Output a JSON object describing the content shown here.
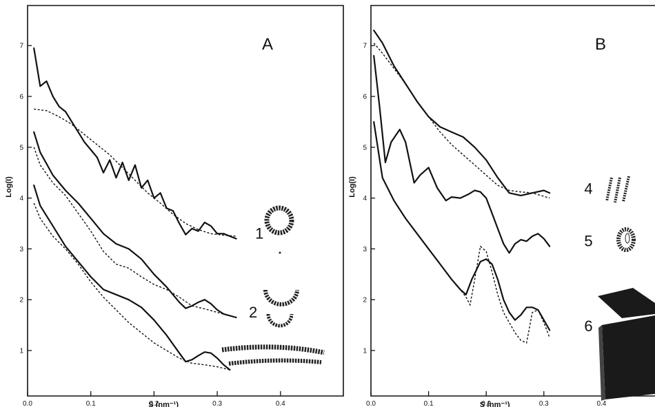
{
  "chart_data": [
    {
      "type": "line",
      "panel": "A",
      "xlabel": "S (nm⁻¹)",
      "ylabel": "Log(I)",
      "xlim": [
        0,
        0.5
      ],
      "ylim": [
        0.5,
        7.3
      ],
      "xticks": [
        {
          "v": 0.0,
          "label": "0.0"
        },
        {
          "v": 0.1,
          "label": "0.1"
        },
        {
          "v": 0.2,
          "label": "0.2"
        },
        {
          "v": 0.3,
          "label": "0.3"
        },
        {
          "v": 0.4,
          "label": "0.4"
        }
      ],
      "yticks": [
        {
          "v": 1,
          "label": "1"
        },
        {
          "v": 2,
          "label": "2"
        },
        {
          "v": 3,
          "label": "3"
        },
        {
          "v": 4,
          "label": "4"
        },
        {
          "v": 5,
          "label": "5"
        },
        {
          "v": 6,
          "label": "6"
        },
        {
          "v": 7,
          "label": "7"
        }
      ],
      "grid": false,
      "series": [
        {
          "style": "solid",
          "x": [
            0.01,
            0.02,
            0.03,
            0.04,
            0.05,
            0.06,
            0.07,
            0.08,
            0.09,
            0.1,
            0.11,
            0.12,
            0.13,
            0.14,
            0.15,
            0.16,
            0.17,
            0.18,
            0.19,
            0.2,
            0.21,
            0.22,
            0.23,
            0.24,
            0.25,
            0.26,
            0.27,
            0.28,
            0.29,
            0.3,
            0.31,
            0.32,
            0.33
          ],
          "y": [
            6.95,
            6.2,
            6.3,
            6.0,
            5.8,
            5.7,
            5.5,
            5.3,
            5.1,
            4.95,
            4.8,
            4.5,
            4.75,
            4.4,
            4.7,
            4.35,
            4.65,
            4.2,
            4.35,
            4.0,
            4.1,
            3.8,
            3.75,
            3.5,
            3.28,
            3.4,
            3.35,
            3.52,
            3.45,
            3.3,
            3.3,
            3.25,
            3.2
          ]
        },
        {
          "style": "dashed",
          "x": [
            0.01,
            0.03,
            0.05,
            0.07,
            0.09,
            0.11,
            0.13,
            0.15,
            0.17,
            0.19,
            0.21,
            0.23,
            0.25,
            0.27,
            0.29,
            0.31,
            0.33
          ],
          "y": [
            5.75,
            5.72,
            5.6,
            5.45,
            5.25,
            5.05,
            4.85,
            4.6,
            4.35,
            4.1,
            3.9,
            3.68,
            3.5,
            3.38,
            3.3,
            3.27,
            3.25
          ]
        },
        {
          "style": "solid",
          "x": [
            0.01,
            0.02,
            0.04,
            0.06,
            0.08,
            0.1,
            0.12,
            0.14,
            0.16,
            0.18,
            0.2,
            0.22,
            0.24,
            0.25,
            0.26,
            0.27,
            0.28,
            0.29,
            0.3,
            0.31,
            0.33
          ],
          "y": [
            5.3,
            4.9,
            4.45,
            4.15,
            3.9,
            3.6,
            3.3,
            3.1,
            3.0,
            2.8,
            2.5,
            2.25,
            1.95,
            1.83,
            1.88,
            1.95,
            2.0,
            1.92,
            1.8,
            1.72,
            1.65
          ]
        },
        {
          "style": "dashed",
          "x": [
            0.01,
            0.02,
            0.04,
            0.06,
            0.08,
            0.1,
            0.12,
            0.14,
            0.16,
            0.18,
            0.2,
            0.22,
            0.24,
            0.26,
            0.28,
            0.3,
            0.33
          ],
          "y": [
            5.0,
            4.65,
            4.3,
            4.05,
            3.7,
            3.35,
            2.95,
            2.7,
            2.62,
            2.45,
            2.3,
            2.2,
            2.05,
            1.88,
            1.82,
            1.75,
            1.65
          ]
        },
        {
          "style": "solid",
          "x": [
            0.01,
            0.02,
            0.04,
            0.06,
            0.08,
            0.1,
            0.12,
            0.14,
            0.16,
            0.18,
            0.2,
            0.22,
            0.24,
            0.25,
            0.26,
            0.27,
            0.28,
            0.29,
            0.3,
            0.31,
            0.32
          ],
          "y": [
            4.25,
            3.85,
            3.45,
            3.05,
            2.75,
            2.45,
            2.2,
            2.1,
            2.0,
            1.85,
            1.6,
            1.3,
            0.95,
            0.78,
            0.82,
            0.9,
            0.97,
            0.95,
            0.85,
            0.72,
            0.62
          ]
        },
        {
          "style": "dashed",
          "x": [
            0.01,
            0.02,
            0.04,
            0.06,
            0.08,
            0.1,
            0.12,
            0.14,
            0.16,
            0.18,
            0.2,
            0.22,
            0.24,
            0.26,
            0.28,
            0.3,
            0.32
          ],
          "y": [
            3.9,
            3.6,
            3.25,
            3.0,
            2.7,
            2.35,
            2.05,
            1.8,
            1.55,
            1.35,
            1.15,
            1.0,
            0.85,
            0.75,
            0.72,
            0.68,
            0.62
          ]
        }
      ],
      "curve_labels": [
        {
          "text": "1",
          "x": 0.36,
          "y": 3.2
        },
        {
          "text": "2",
          "x": 0.35,
          "y": 1.65
        }
      ]
    },
    {
      "type": "line",
      "panel": "B",
      "xlabel": "S (nm⁻¹)",
      "ylabel": "Log(I)",
      "xlim": [
        0,
        0.5
      ],
      "ylim": [
        0.5,
        7.3
      ],
      "xticks": [
        {
          "v": 0.0,
          "label": "0.0"
        },
        {
          "v": 0.1,
          "label": "0.1"
        },
        {
          "v": 0.2,
          "label": "0.2"
        },
        {
          "v": 0.3,
          "label": "0.3"
        },
        {
          "v": 0.4,
          "label": "0.4"
        }
      ],
      "yticks": [
        {
          "v": 1,
          "label": "1"
        },
        {
          "v": 2,
          "label": "2"
        },
        {
          "v": 3,
          "label": "3"
        },
        {
          "v": 4,
          "label": "4"
        },
        {
          "v": 5,
          "label": "5"
        },
        {
          "v": 6,
          "label": "6"
        },
        {
          "v": 7,
          "label": "7"
        }
      ],
      "grid": false,
      "series": [
        {
          "style": "solid",
          "x": [
            0.005,
            0.02,
            0.04,
            0.06,
            0.08,
            0.1,
            0.12,
            0.14,
            0.16,
            0.18,
            0.2,
            0.22,
            0.24,
            0.26,
            0.28,
            0.3,
            0.31
          ],
          "y": [
            7.3,
            7.05,
            6.6,
            6.25,
            5.9,
            5.6,
            5.4,
            5.3,
            5.2,
            5.0,
            4.75,
            4.4,
            4.1,
            4.05,
            4.1,
            4.15,
            4.1
          ]
        },
        {
          "style": "dashed",
          "x": [
            0.005,
            0.02,
            0.04,
            0.06,
            0.08,
            0.1,
            0.12,
            0.14,
            0.16,
            0.18,
            0.2,
            0.22,
            0.24,
            0.26,
            0.28,
            0.31
          ],
          "y": [
            7.05,
            6.85,
            6.55,
            6.25,
            5.9,
            5.6,
            5.3,
            5.05,
            4.85,
            4.65,
            4.45,
            4.25,
            4.15,
            4.12,
            4.1,
            4.0
          ]
        },
        {
          "style": "solid",
          "x": [
            0.005,
            0.015,
            0.025,
            0.035,
            0.05,
            0.06,
            0.075,
            0.085,
            0.1,
            0.115,
            0.13,
            0.14,
            0.155,
            0.17,
            0.18,
            0.19,
            0.2,
            0.21,
            0.22,
            0.23,
            0.24,
            0.25,
            0.26,
            0.27,
            0.28,
            0.29,
            0.3,
            0.31
          ],
          "y": [
            6.8,
            5.8,
            4.7,
            5.1,
            5.35,
            5.1,
            4.3,
            4.45,
            4.6,
            4.2,
            3.95,
            4.02,
            4.0,
            4.08,
            4.15,
            4.12,
            4.0,
            3.7,
            3.4,
            3.1,
            2.92,
            3.1,
            3.18,
            3.15,
            3.25,
            3.3,
            3.2,
            3.05
          ]
        },
        {
          "style": "solid",
          "x": [
            0.005,
            0.02,
            0.04,
            0.06,
            0.08,
            0.1,
            0.12,
            0.14,
            0.155,
            0.165,
            0.175,
            0.19,
            0.2,
            0.21,
            0.22,
            0.23,
            0.24,
            0.25,
            0.26,
            0.27,
            0.28,
            0.29,
            0.3,
            0.31
          ],
          "y": [
            5.5,
            4.4,
            3.95,
            3.6,
            3.3,
            3.0,
            2.7,
            2.4,
            2.2,
            2.1,
            2.4,
            2.75,
            2.8,
            2.7,
            2.4,
            2.0,
            1.75,
            1.6,
            1.7,
            1.85,
            1.85,
            1.8,
            1.6,
            1.4
          ]
        },
        {
          "style": "dashed",
          "x": [
            0.14,
            0.155,
            0.165,
            0.172,
            0.18,
            0.19,
            0.2,
            0.21,
            0.22,
            0.23,
            0.24,
            0.25,
            0.26,
            0.27,
            0.28,
            0.29,
            0.3,
            0.31
          ],
          "y": [
            2.4,
            2.2,
            2.05,
            1.9,
            2.4,
            3.05,
            2.95,
            2.55,
            2.1,
            1.75,
            1.55,
            1.35,
            1.2,
            1.15,
            1.75,
            1.8,
            1.55,
            1.25
          ]
        }
      ],
      "curve_labels": [
        {
          "text": "4",
          "x": 0.37,
          "y": 4.08
        },
        {
          "text": "5",
          "x": 0.37,
          "y": 3.05
        },
        {
          "text": "6",
          "x": 0.37,
          "y": 1.38
        }
      ]
    }
  ],
  "figure_glyphs": [
    {
      "name": "ring-glyph",
      "panel": "A"
    },
    {
      "name": "semicircle-glyph",
      "panel": "A"
    },
    {
      "name": "arc-band-glyph",
      "panel": "A"
    },
    {
      "name": "strand-glyph",
      "panel": "B"
    },
    {
      "name": "cylinder-glyph",
      "panel": "B"
    },
    {
      "name": "sheet-glyph",
      "panel": "B"
    }
  ]
}
